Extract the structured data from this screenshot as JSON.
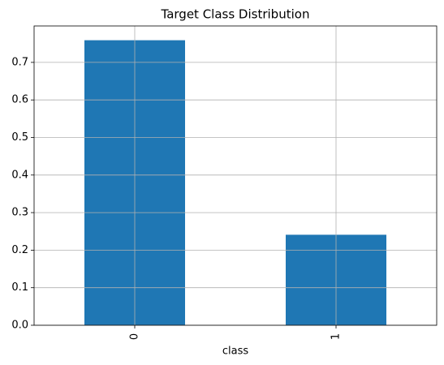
{
  "chart_data": {
    "type": "bar",
    "title": "Target Class Distribution",
    "x_label": "class",
    "categories": [
      "0",
      "1"
    ],
    "values": [
      0.759,
      0.241
    ],
    "color": "#1f77b4",
    "ylim": [
      0,
      0.797
    ],
    "yticks": [
      {
        "value": 0,
        "label": "0.0"
      },
      0.1,
      0.2,
      0.3,
      0.4,
      0.5,
      0.6,
      0.7
    ],
    "grid": true
  }
}
